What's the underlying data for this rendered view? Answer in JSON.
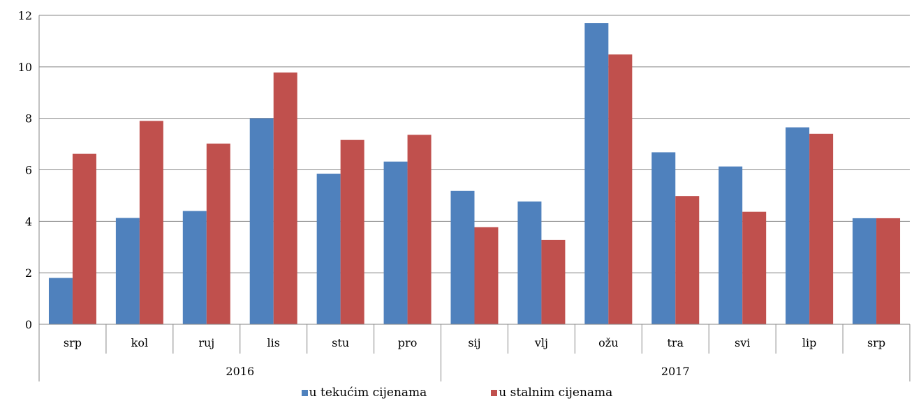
{
  "chart_data": {
    "type": "bar",
    "title": "",
    "xlabel": "",
    "ylabel": "",
    "categories": [
      "srp",
      "kol",
      "ruj",
      "lis",
      "stu",
      "pro",
      "sij",
      "vlj",
      "ožu",
      "tra",
      "svi",
      "lip",
      "srp"
    ],
    "groups": [
      {
        "label": "2016",
        "start": 0,
        "end": 5
      },
      {
        "label": "2017",
        "start": 6,
        "end": 12
      }
    ],
    "series": [
      {
        "name": "u tekućim cijenama",
        "color": "#4F81BD",
        "values": [
          1.8,
          4.13,
          4.4,
          8.0,
          5.85,
          6.32,
          5.18,
          4.77,
          11.7,
          6.68,
          6.13,
          7.65,
          4.12
        ]
      },
      {
        "name": "u stalnim cijenama",
        "color": "#C0504D",
        "values": [
          6.62,
          7.9,
          7.02,
          9.78,
          7.16,
          7.36,
          3.77,
          3.28,
          10.48,
          4.98,
          4.37,
          7.4,
          4.12
        ]
      }
    ],
    "ylim": [
      0,
      12
    ],
    "yticks": [
      0,
      2,
      4,
      6,
      8,
      10,
      12
    ],
    "grid": true,
    "legend_position": "bottom"
  }
}
